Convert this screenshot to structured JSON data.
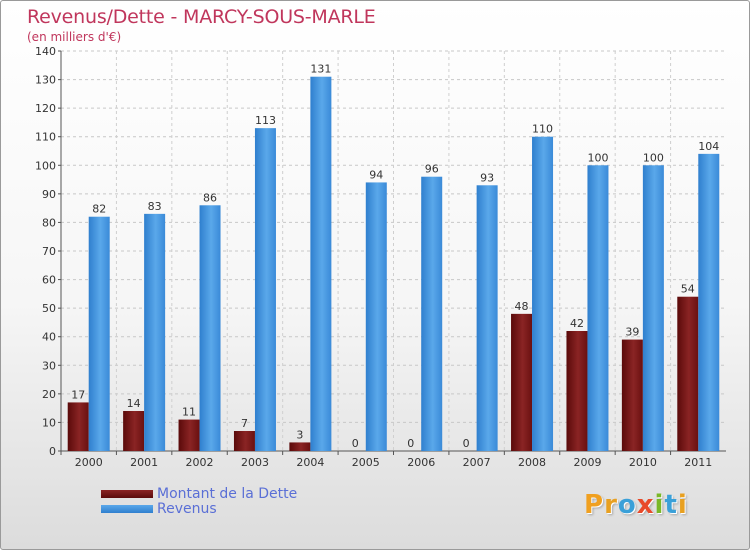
{
  "title": "Revenus/Dette - MARCY-SOUS-MARLE",
  "subtitle": "(en milliers d'€)",
  "logo_text": "Proxiti",
  "colors": {
    "title": "#c0365c",
    "dette": "#7a1414",
    "revenus": "#3a90dc",
    "legend_text": "#5a6fd6"
  },
  "chart_data": {
    "type": "bar",
    "title": "Revenus/Dette - MARCY-SOUS-MARLE",
    "subtitle": "(en milliers d'€)",
    "categories": [
      "2000",
      "2001",
      "2002",
      "2003",
      "2004",
      "2005",
      "2006",
      "2007",
      "2008",
      "2009",
      "2010",
      "2011"
    ],
    "series": [
      {
        "name": "Montant de la Dette",
        "values": [
          17,
          14,
          11,
          7,
          3,
          0,
          0,
          0,
          48,
          42,
          39,
          54
        ]
      },
      {
        "name": "Revenus",
        "values": [
          82,
          83,
          86,
          113,
          131,
          94,
          96,
          93,
          110,
          100,
          100,
          104
        ]
      }
    ],
    "ylim": [
      0,
      140
    ],
    "yticks": [
      0,
      10,
      20,
      30,
      40,
      50,
      60,
      70,
      80,
      90,
      100,
      110,
      120,
      130,
      140
    ],
    "grid": true,
    "legend_position": "bottom-left"
  }
}
